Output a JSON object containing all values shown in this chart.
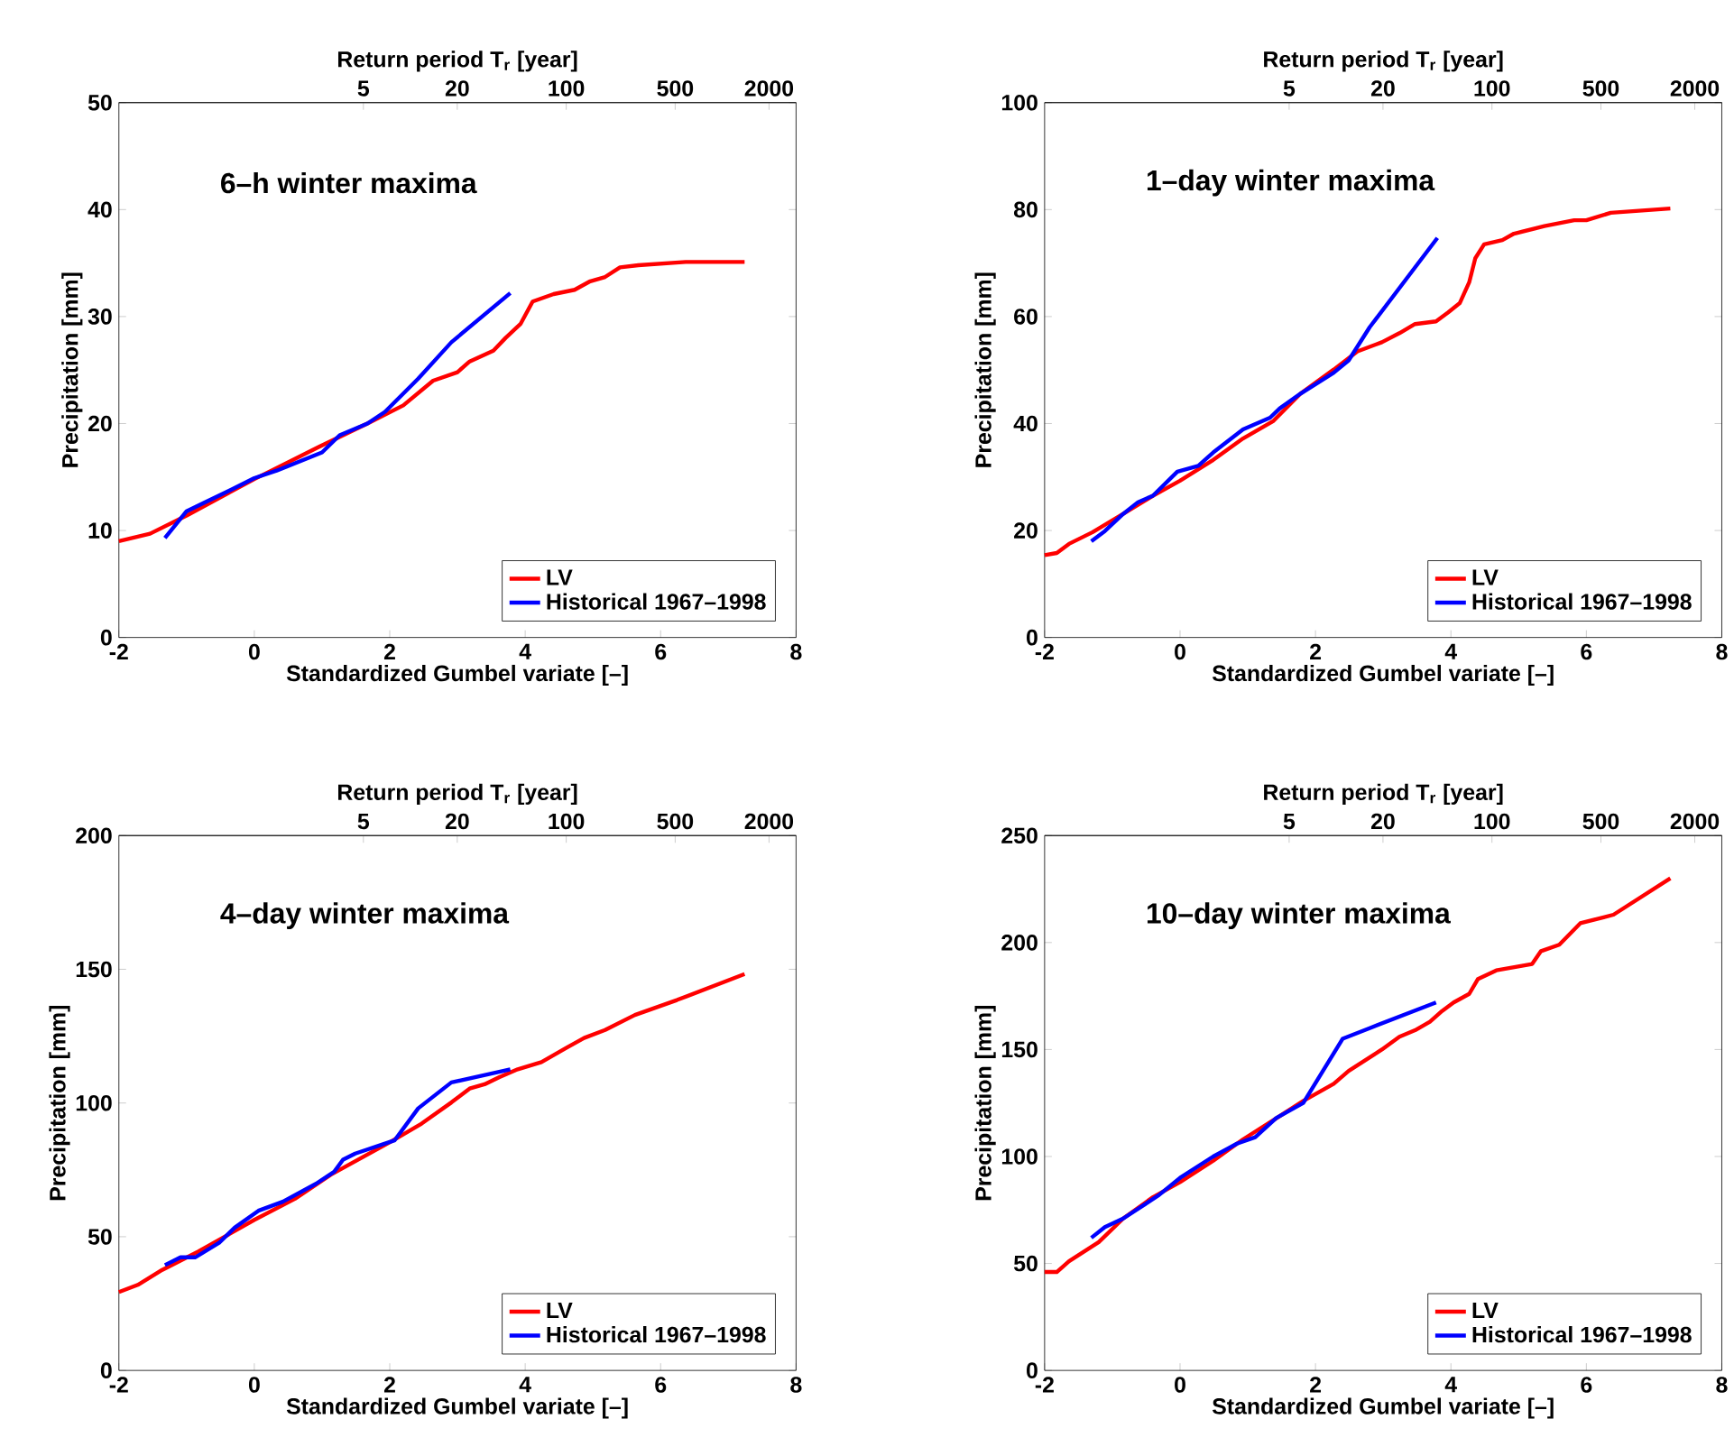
{
  "chart_data": [
    {
      "type": "line",
      "title": "6–h winter maxima",
      "xlabel": "Standardized Gumbel variate [–]",
      "ylabel": "Precipitation [mm]",
      "x2label": "Return period T$_{r}$ [year]",
      "xlim": [
        -2,
        8
      ],
      "xticks": [
        -2,
        0,
        2,
        4,
        6,
        8
      ],
      "ylim": [
        0,
        50
      ],
      "yticks": [
        0,
        10,
        20,
        30,
        40,
        50
      ],
      "x2lim": [
        0.135,
        2981
      ],
      "x2ticks": [
        5,
        20,
        100,
        500,
        2000
      ],
      "log": "x2",
      "legend": "bottom right",
      "grid": false,
      "series": [
        {
          "name": "LV",
          "color": "#ff0000",
          "x": [
            -2,
            -1.54,
            -1.0,
            0,
            0.95,
            1.67,
            2.2,
            2.64,
            3.0,
            3.18,
            3.53,
            3.71,
            3.93,
            4.11,
            4.42,
            4.73,
            4.96,
            5.18,
            5.4,
            5.67,
            6.37,
            7.24
          ],
          "values": [
            9.0,
            9.7,
            11.4,
            14.8,
            17.8,
            20.0,
            21.7,
            24.0,
            24.8,
            25.8,
            26.8,
            28.0,
            29.3,
            31.4,
            32.1,
            32.5,
            33.3,
            33.7,
            34.6,
            34.8,
            35.1,
            35.1
          ]
        },
        {
          "name": "Historical 1967–1998",
          "color": "#0000ff",
          "x": [
            -1.32,
            -1.0,
            -0.74,
            -0.38,
            0,
            0.33,
            1.0,
            1.26,
            1.67,
            1.93,
            2.42,
            2.91,
            3.78
          ],
          "values": [
            9.3,
            11.8,
            12.6,
            13.7,
            14.9,
            15.6,
            17.3,
            18.9,
            20.0,
            21.1,
            24.2,
            27.6,
            32.2
          ]
        }
      ]
    },
    {
      "type": "line",
      "title": "1–day winter maxima",
      "xlabel": "Standardized Gumbel variate [–]",
      "ylabel": "Precipitation [mm]",
      "x2label": "Return period T$_{r}$ [year]",
      "xlim": [
        -2,
        8
      ],
      "xticks": [
        -2,
        0,
        2,
        4,
        6,
        8
      ],
      "ylim": [
        0,
        100
      ],
      "yticks": [
        0,
        20,
        40,
        60,
        80,
        100
      ],
      "x2lim": [
        0.135,
        2981
      ],
      "x2ticks": [
        5,
        20,
        100,
        500,
        2000
      ],
      "log": "x2",
      "legend": "bottom right",
      "grid": false,
      "series": [
        {
          "name": "LV",
          "color": "#ff0000",
          "x": [
            -2,
            -1.82,
            -1.64,
            -1.29,
            -0.84,
            -0.4,
            0,
            0.49,
            0.93,
            1.38,
            1.78,
            2.27,
            2.62,
            2.98,
            3.24,
            3.47,
            3.78,
            3.96,
            4.13,
            4.27,
            4.36,
            4.49,
            4.76,
            4.93,
            5.38,
            5.82,
            6.0,
            6.36,
            7.24
          ],
          "values": [
            15.4,
            15.8,
            17.5,
            19.7,
            23.1,
            26.5,
            29.3,
            33.2,
            37.2,
            40.5,
            45.6,
            50.1,
            53.5,
            55.2,
            56.9,
            58.6,
            59.1,
            60.8,
            62.5,
            66.4,
            70.9,
            73.5,
            74.3,
            75.5,
            76.9,
            78.0,
            78.0,
            79.4,
            80.2
          ]
        },
        {
          "name": "Historical 1967–1998",
          "color": "#0000ff",
          "x": [
            -1.31,
            -1.11,
            -0.84,
            -0.62,
            -0.4,
            -0.04,
            0.27,
            0.49,
            0.93,
            1.33,
            1.47,
            1.78,
            2.27,
            2.49,
            2.8,
            3.8
          ],
          "values": [
            18.0,
            19.9,
            23.1,
            25.3,
            26.5,
            31.0,
            32.1,
            34.6,
            38.9,
            41.1,
            42.8,
            45.6,
            49.5,
            51.8,
            58.0,
            74.7
          ]
        }
      ]
    },
    {
      "type": "line",
      "title": "4–day winter maxima",
      "xlabel": "Standardized Gumbel variate [–]",
      "ylabel": "Precipitation [mm]",
      "x2label": "Return period T$_{r}$ [year]",
      "xlim": [
        -2,
        8
      ],
      "xticks": [
        -2,
        0,
        2,
        4,
        6,
        8
      ],
      "ylim": [
        0,
        200
      ],
      "yticks": [
        0,
        50,
        100,
        150,
        200
      ],
      "x2lim": [
        0.135,
        2981
      ],
      "x2ticks": [
        5,
        20,
        100,
        500,
        2000
      ],
      "log": "x2",
      "legend": "bottom right",
      "grid": false,
      "series": [
        {
          "name": "LV",
          "color": "#ff0000",
          "x": [
            -2,
            -1.72,
            -1.36,
            -0.83,
            0,
            0.6,
            1.13,
            2.02,
            2.47,
            2.91,
            3.18,
            3.4,
            3.62,
            3.89,
            4.24,
            4.6,
            4.87,
            5.18,
            5.62,
            6.24,
            7.24
          ],
          "values": [
            29.3,
            32.0,
            37.6,
            44.4,
            56.3,
            64.2,
            73.2,
            85.6,
            92.3,
            100.2,
            105.4,
            107.0,
            109.7,
            112.6,
            115.3,
            120.5,
            124.3,
            127.3,
            132.9,
            138.5,
            148.2
          ]
        },
        {
          "name": "Historical 1967–1998",
          "color": "#0000ff",
          "x": [
            -1.32,
            -1.09,
            -0.87,
            -0.52,
            -0.29,
            0.06,
            0.42,
            0.91,
            1.18,
            1.31,
            1.49,
            2.07,
            2.42,
            2.91,
            3.78
          ],
          "values": [
            39.4,
            42.3,
            42.3,
            47.7,
            53.4,
            59.7,
            63.1,
            69.8,
            74.3,
            78.8,
            81.1,
            86.0,
            98.0,
            107.7,
            112.6
          ]
        }
      ]
    },
    {
      "type": "line",
      "title": "10–day winter maxima",
      "xlabel": "Standardized Gumbel variate [–]",
      "ylabel": "Precipitation [mm]",
      "x2label": "Return period T$_{r}$ [year]",
      "xlim": [
        -2,
        8
      ],
      "xticks": [
        -2,
        0,
        2,
        4,
        6,
        8
      ],
      "ylim": [
        0,
        250
      ],
      "yticks": [
        0,
        50,
        100,
        150,
        200,
        250
      ],
      "x2lim": [
        0.135,
        2981
      ],
      "x2ticks": [
        5,
        20,
        100,
        500,
        2000
      ],
      "log": "x2",
      "legend": "bottom right",
      "grid": false,
      "series": [
        {
          "name": "LV",
          "color": "#ff0000",
          "x": [
            -2,
            -1.82,
            -1.64,
            -1.2,
            -0.84,
            -0.4,
            0,
            0.49,
            0.93,
            1.38,
            1.82,
            2.27,
            2.49,
            2.98,
            3.24,
            3.47,
            3.69,
            3.87,
            4.04,
            4.27,
            4.4,
            4.67,
            5.2,
            5.33,
            5.6,
            5.91,
            6.4,
            7.24
          ],
          "values": [
            46,
            46,
            51,
            60,
            71,
            81,
            88,
            98,
            108,
            117,
            126,
            134,
            140,
            150,
            156,
            159,
            163,
            168,
            172,
            176,
            183,
            187,
            190,
            196,
            199,
            209,
            213,
            230
          ]
        },
        {
          "name": "Historical 1967–1998",
          "color": "#0000ff",
          "x": [
            -1.31,
            -1.11,
            -0.84,
            -0.31,
            0,
            0.49,
            0.84,
            1.11,
            1.42,
            1.82,
            2.4,
            2.8,
            3.78
          ],
          "values": [
            62,
            67,
            71,
            82,
            90,
            100,
            106,
            109,
            118,
            125,
            155,
            160,
            172
          ]
        }
      ]
    }
  ]
}
